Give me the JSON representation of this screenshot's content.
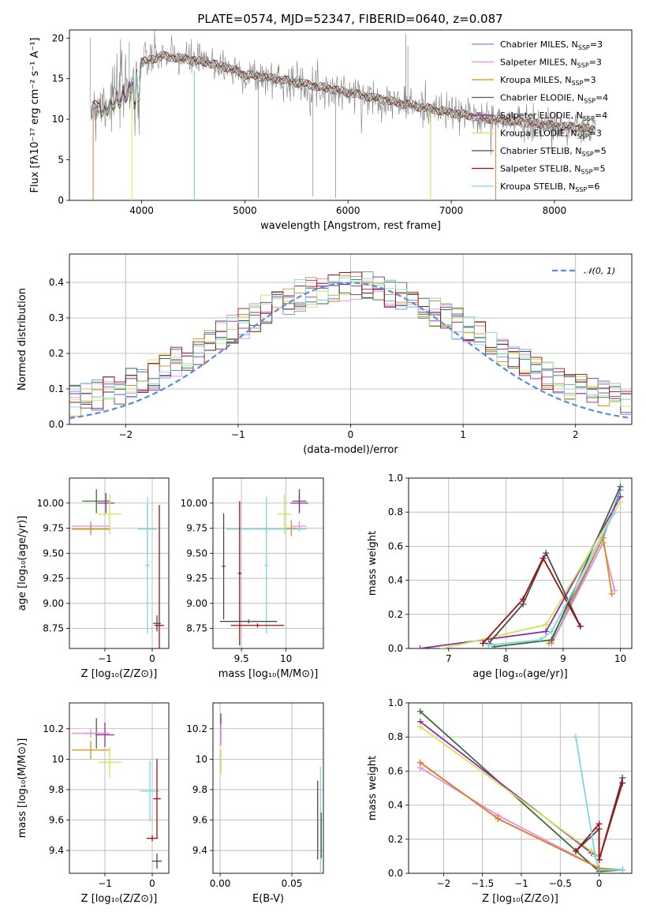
{
  "colors": {
    "chabrier_miles": "#6f8ee0",
    "salpeter_miles": "#e58fd8",
    "kroupa_miles": "#d49020",
    "chabrier_elodie": "#3e6b3e",
    "salpeter_elodie": "#8e2aa8",
    "kroupa_elodie": "#cfe553",
    "chabrier_stelib": "#4a4a4a",
    "salpeter_stelib": "#a01010",
    "kroupa_stelib": "#7fd6dc",
    "spectrum": "#808080",
    "normal": "#5b8bd6",
    "orange": "#e07b30",
    "green": "#5a8a5a"
  },
  "chart_data": [
    {
      "id": "spectrum",
      "type": "line",
      "title": "PLATE=0574, MJD=52347, FIBERID=0640, z=0.087",
      "xlabel": "wavelength [Angstrom, rest frame]",
      "ylabel": "Flux [fλ10⁻¹⁷ erg cm⁻² s⁻¹ A⁻¹]",
      "xlim": [
        3300,
        8750
      ],
      "ylim": [
        0,
        21
      ],
      "xticks": [
        4000,
        5000,
        6000,
        7000,
        8000
      ],
      "yticks": [
        0,
        5,
        10,
        15,
        20
      ],
      "legend_position": "top-right",
      "legend": [
        {
          "label": "Chabrier MILES, N",
          "sub": "SSP",
          "eq": "=3",
          "color_key": "chabrier_miles"
        },
        {
          "label": "Salpeter MILES, N",
          "sub": "SSP",
          "eq": "=3",
          "color_key": "salpeter_miles"
        },
        {
          "label": "Kroupa MILES, N",
          "sub": "SSP",
          "eq": "=3",
          "color_key": "kroupa_miles"
        },
        {
          "label": "Chabrier ELODIE, N",
          "sub": "SSP",
          "eq": "=4",
          "color_key": "chabrier_elodie"
        },
        {
          "label": "Salpeter ELODIE, N",
          "sub": "SSP",
          "eq": "=4",
          "color_key": "salpeter_elodie"
        },
        {
          "label": "Kroupa ELODIE, N",
          "sub": "SSP",
          "eq": "=3",
          "color_key": "kroupa_elodie"
        },
        {
          "label": "Chabrier STELIB, N",
          "sub": "SSP",
          "eq": "=5",
          "color_key": "chabrier_stelib"
        },
        {
          "label": "Salpeter STELIB, N",
          "sub": "SSP",
          "eq": "=5",
          "color_key": "salpeter_stelib"
        },
        {
          "label": "Kroupa STELIB, N",
          "sub": "SSP",
          "eq": "=6",
          "color_key": "kroupa_stelib"
        }
      ],
      "continuum": [
        [
          3500,
          11.5
        ],
        [
          3700,
          12.5
        ],
        [
          3900,
          14.5
        ],
        [
          4000,
          17.0
        ],
        [
          4200,
          17.8
        ],
        [
          4500,
          17.3
        ],
        [
          4800,
          16.5
        ],
        [
          5000,
          15.5
        ],
        [
          5300,
          15.0
        ],
        [
          5600,
          14.3
        ],
        [
          6000,
          13.3
        ],
        [
          6500,
          12.0
        ],
        [
          7000,
          10.8
        ],
        [
          7400,
          10.0
        ],
        [
          7800,
          9.5
        ],
        [
          8000,
          9.2
        ],
        [
          8200,
          9.0
        ],
        [
          8400,
          8.7
        ]
      ]
    },
    {
      "id": "residuals",
      "type": "line",
      "xlabel": "(data-model)/error",
      "ylabel": "Normed distribution",
      "xlim": [
        -2.5,
        2.5
      ],
      "ylim": [
        0,
        0.48
      ],
      "xticks": [
        -2,
        -1,
        0,
        1,
        2
      ],
      "yticks": [
        0.0,
        0.1,
        0.2,
        0.3,
        0.4
      ],
      "grid": true,
      "legend_position": "top-right",
      "legend_label": "𝒩(0, 1)",
      "normal_curve": {
        "mu": 0,
        "sigma": 1
      }
    },
    {
      "id": "age_vs_z",
      "type": "scatter",
      "xlabel": "Z [log₁₀(Z/Z⊙)]",
      "ylabel": "age  [log₁₀(age/yr)]",
      "xlim": [
        -1.75,
        0.35
      ],
      "ylim": [
        8.55,
        10.25
      ],
      "xticks": [
        -1,
        0
      ],
      "yticks": [
        8.75,
        9.0,
        9.25,
        9.5,
        9.75,
        10.0
      ],
      "ytick_labels": [
        "8.75",
        "9.00",
        "9.25",
        "9.50",
        "9.75",
        "10.00"
      ],
      "grid": true,
      "points": [
        {
          "x": -1.18,
          "y": 10.02,
          "xerr": 0.3,
          "yerr": 0.12,
          "color_key": "chabrier_elodie"
        },
        {
          "x": -0.98,
          "y": 10.0,
          "xerr": 0.18,
          "yerr": 0.1,
          "color_key": "salpeter_elodie"
        },
        {
          "x": -0.9,
          "y": 9.89,
          "xerr": 0.25,
          "yerr": 0.2,
          "color_key": "kroupa_elodie"
        },
        {
          "x": -1.3,
          "y": 9.77,
          "xerr": 0.4,
          "yerr": 0.05,
          "color_key": "salpeter_miles"
        },
        {
          "x": -1.3,
          "y": 9.74,
          "xerr": 0.4,
          "yerr": 0.06,
          "color_key": "kroupa_miles"
        },
        {
          "x": -0.1,
          "y": 9.74,
          "xerr": 0.2,
          "yerr": 0.25,
          "color_key": "kroupa_stelib"
        },
        {
          "x": -0.1,
          "y": 9.38,
          "xerr": 0.05,
          "yerr": 0.68,
          "color_key": "kroupa_stelib"
        },
        {
          "x": 0.1,
          "y": 8.8,
          "xerr": 0.08,
          "yerr": 0.08,
          "color_key": "chabrier_stelib"
        },
        {
          "x": 0.15,
          "y": 8.78,
          "xerr": 0.1,
          "yerr": 1.2,
          "color_key": "salpeter_stelib"
        }
      ]
    },
    {
      "id": "age_vs_mass",
      "type": "scatter",
      "xlabel": "mass [log₁₀(M/M⊙)]",
      "xlim": [
        9.18,
        10.42
      ],
      "ylim": [
        8.55,
        10.25
      ],
      "xticks": [
        9.5,
        10.0
      ],
      "yticks": [
        8.75,
        9.0,
        9.25,
        9.5,
        9.75,
        10.0
      ],
      "ytick_labels": [
        "8.75",
        "9.00",
        "9.25",
        "9.50",
        "9.75",
        "10.00"
      ],
      "grid": true,
      "points": [
        {
          "x": 10.15,
          "y": 10.02,
          "xerr": 0.08,
          "yerr": 0.12,
          "color_key": "chabrier_elodie"
        },
        {
          "x": 10.15,
          "y": 10.0,
          "xerr": 0.1,
          "yerr": 0.1,
          "color_key": "salpeter_elodie"
        },
        {
          "x": 9.98,
          "y": 9.89,
          "xerr": 0.08,
          "yerr": 0.2,
          "color_key": "kroupa_elodie"
        },
        {
          "x": 10.15,
          "y": 9.77,
          "xerr": 0.08,
          "yerr": 0.05,
          "color_key": "salpeter_miles"
        },
        {
          "x": 10.06,
          "y": 9.75,
          "xerr": 0.06,
          "yerr": 0.08,
          "color_key": "kroupa_miles"
        },
        {
          "x": 9.78,
          "y": 9.74,
          "xerr": 0.45,
          "yerr": 0.04,
          "color_key": "kroupa_stelib"
        },
        {
          "x": 9.78,
          "y": 9.38,
          "xerr": 0.02,
          "yerr": 0.68,
          "color_key": "kroupa_stelib"
        },
        {
          "x": 9.3,
          "y": 9.37,
          "xerr": 0.02,
          "yerr": 0.53,
          "color_key": "chabrier_stelib"
        },
        {
          "x": 9.58,
          "y": 8.82,
          "xerr": 0.32,
          "yerr": 0.02,
          "color_key": "chabrier_stelib"
        },
        {
          "x": 9.48,
          "y": 9.3,
          "xerr": 0.02,
          "yerr": 0.72,
          "color_key": "salpeter_stelib"
        },
        {
          "x": 9.68,
          "y": 8.78,
          "xerr": 0.3,
          "yerr": 0.02,
          "color_key": "salpeter_stelib"
        }
      ]
    },
    {
      "id": "weight_vs_age",
      "type": "line",
      "xlabel": "age  [log₁₀(age/yr)]",
      "ylabel": "mass weight",
      "xlim": [
        6.3,
        10.2
      ],
      "ylim": [
        0,
        1.0
      ],
      "xticks": [
        7,
        8,
        9,
        10
      ],
      "yticks": [
        0.0,
        0.2,
        0.4,
        0.6,
        0.8,
        1.0
      ],
      "grid": true,
      "series": [
        {
          "color_key": "chabrier_miles",
          "x": [
            8.8,
            9.7,
            10.0
          ],
          "y": [
            0.03,
            0.65,
            0.93
          ]
        },
        {
          "color_key": "salpeter_miles",
          "x": [
            8.8,
            9.7,
            9.9
          ],
          "y": [
            0.03,
            0.62,
            0.34
          ]
        },
        {
          "color_key": "kroupa_miles",
          "x": [
            8.75,
            9.7,
            9.85
          ],
          "y": [
            0.03,
            0.65,
            0.32
          ]
        },
        {
          "color_key": "chabrier_elodie",
          "x": [
            7.8,
            8.8,
            10.0
          ],
          "y": [
            0.01,
            0.05,
            0.95
          ]
        },
        {
          "color_key": "salpeter_elodie",
          "x": [
            6.5,
            8.7,
            10.0
          ],
          "y": [
            0.0,
            0.1,
            0.89
          ]
        },
        {
          "color_key": "kroupa_elodie",
          "x": [
            6.9,
            8.7,
            10.0
          ],
          "y": [
            0.0,
            0.14,
            0.86
          ]
        },
        {
          "color_key": "chabrier_stelib",
          "x": [
            7.7,
            8.3,
            8.7,
            9.3
          ],
          "y": [
            0.03,
            0.26,
            0.56,
            0.13
          ]
        },
        {
          "color_key": "salpeter_stelib",
          "x": [
            7.6,
            8.3,
            8.65,
            9.3
          ],
          "y": [
            0.03,
            0.29,
            0.53,
            0.13
          ]
        },
        {
          "color_key": "kroupa_stelib",
          "x": [
            7.7,
            8.6,
            8.8,
            9.9
          ],
          "y": [
            0.02,
            0.05,
            0.1,
            0.8
          ]
        }
      ]
    },
    {
      "id": "mass_vs_z",
      "type": "scatter",
      "xlabel": "Z [log₁₀(Z/Z⊙)]",
      "ylabel": "mass [log₁₀(M/M⊙)]",
      "xlim": [
        -1.75,
        0.35
      ],
      "ylim": [
        9.25,
        10.37
      ],
      "xticks": [
        -1,
        0
      ],
      "yticks": [
        9.4,
        9.6,
        9.8,
        10.0,
        10.2
      ],
      "grid": true,
      "points": [
        {
          "x": -1.18,
          "y": 10.17,
          "xerr": 0.25,
          "yerr": 0.1,
          "color_key": "chabrier_elodie"
        },
        {
          "x": -1.0,
          "y": 10.16,
          "xerr": 0.2,
          "yerr": 0.08,
          "color_key": "salpeter_elodie"
        },
        {
          "x": -1.3,
          "y": 10.17,
          "xerr": 0.4,
          "yerr": 0.03,
          "color_key": "salpeter_miles"
        },
        {
          "x": -1.3,
          "y": 10.06,
          "xerr": 0.4,
          "yerr": 0.06,
          "color_key": "kroupa_miles"
        },
        {
          "x": -0.9,
          "y": 9.98,
          "xerr": 0.25,
          "yerr": 0.1,
          "color_key": "kroupa_elodie"
        },
        {
          "x": -0.05,
          "y": 9.79,
          "xerr": 0.2,
          "yerr": 0.2,
          "color_key": "kroupa_stelib"
        },
        {
          "x": 0.1,
          "y": 9.74,
          "xerr": 0.08,
          "yerr": 0.26,
          "color_key": "salpeter_stelib"
        },
        {
          "x": 0.0,
          "y": 9.48,
          "xerr": 0.12,
          "yerr": 0.02,
          "color_key": "salpeter_stelib"
        },
        {
          "x": 0.1,
          "y": 9.33,
          "xerr": 0.1,
          "yerr": 0.05,
          "color_key": "chabrier_stelib"
        }
      ]
    },
    {
      "id": "mass_vs_ebv",
      "type": "scatter",
      "xlabel": "E(B-V)",
      "xlim": [
        -0.005,
        0.072
      ],
      "ylim": [
        9.25,
        10.37
      ],
      "xticks": [
        0.0,
        0.05
      ],
      "xtick_labels": [
        "0.00",
        "0.05"
      ],
      "yticks": [
        9.4,
        9.6,
        9.8,
        10.0,
        10.2
      ],
      "grid": true,
      "points": [
        {
          "x": 0.0005,
          "y": 10.2,
          "xerr": 0,
          "yerr": 0.1,
          "color_key": "salpeter_elodie"
        },
        {
          "x": 0.0005,
          "y": 10.16,
          "xerr": 0,
          "yerr": 0.07,
          "color_key": "salpeter_miles"
        },
        {
          "x": 0.0005,
          "y": 9.98,
          "xerr": 0,
          "yerr": 0.08,
          "color_key": "kroupa_elodie"
        },
        {
          "x": 0.068,
          "y": 9.6,
          "xerr": 0,
          "yerr": 0.26,
          "color_key": "chabrier_stelib"
        },
        {
          "x": 0.07,
          "y": 9.6,
          "xerr": 0,
          "yerr": 0.35,
          "color_key": "kroupa_stelib"
        },
        {
          "x": 0.0705,
          "y": 9.5,
          "xerr": 0,
          "yerr": 0.15,
          "color_key": "chabrier_elodie"
        }
      ]
    },
    {
      "id": "weight_vs_z",
      "type": "line",
      "xlabel": "Z [log₁₀(Z/Z⊙)]",
      "ylabel": "mass weight",
      "xlim": [
        -2.45,
        0.42
      ],
      "ylim": [
        0,
        1.0
      ],
      "xticks": [
        -2.0,
        -1.5,
        -1.0,
        -0.5,
        0.0
      ],
      "yticks": [
        0.0,
        0.2,
        0.4,
        0.6,
        0.8,
        1.0
      ],
      "grid": true,
      "series": [
        {
          "color_key": "salpeter_miles",
          "x": [
            -2.3,
            -1.3,
            0.0,
            0.3
          ],
          "y": [
            0.62,
            0.34,
            0.03,
            0.02
          ]
        },
        {
          "color_key": "kroupa_miles",
          "x": [
            -2.3,
            -1.3,
            0.0,
            0.3
          ],
          "y": [
            0.65,
            0.32,
            0.03,
            0.02
          ]
        },
        {
          "color_key": "chabrier_elodie",
          "x": [
            -2.3,
            0.0,
            0.3
          ],
          "y": [
            0.95,
            0.01,
            0.02
          ]
        },
        {
          "color_key": "salpeter_elodie",
          "x": [
            -2.3,
            -0.1,
            0.0
          ],
          "y": [
            0.89,
            0.12,
            0.1
          ]
        },
        {
          "color_key": "kroupa_elodie",
          "x": [
            -2.3,
            -0.1,
            0.0
          ],
          "y": [
            0.86,
            0.13,
            0.1
          ]
        },
        {
          "color_key": "chabrier_stelib",
          "x": [
            -0.3,
            0.0,
            0.0,
            0.3
          ],
          "y": [
            0.13,
            0.26,
            0.08,
            0.56
          ]
        },
        {
          "color_key": "salpeter_stelib",
          "x": [
            -0.3,
            0.0,
            0.0,
            0.3
          ],
          "y": [
            0.13,
            0.29,
            0.08,
            0.53
          ]
        },
        {
          "color_key": "kroupa_stelib",
          "x": [
            -0.3,
            -0.05,
            0.0,
            0.3
          ],
          "y": [
            0.8,
            0.1,
            0.02,
            0.02
          ]
        },
        {
          "color_key": "orange",
          "x": [
            -2.3,
            -1.3,
            0.0
          ],
          "y": [
            0.65,
            0.32,
            0.03
          ]
        }
      ]
    }
  ]
}
